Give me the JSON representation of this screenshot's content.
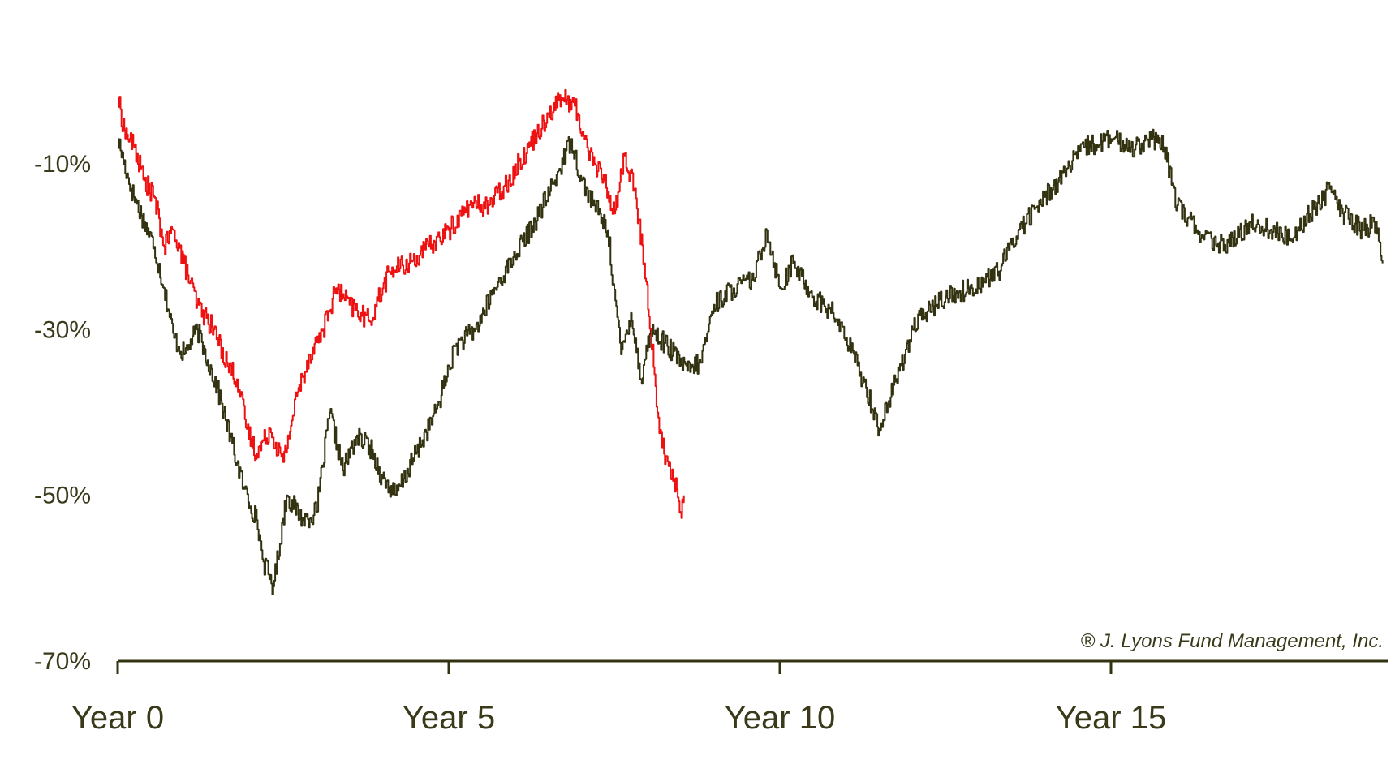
{
  "chart_data": {
    "type": "line",
    "title": "",
    "xlabel": "",
    "ylabel": "",
    "xlim": [
      0,
      19.1
    ],
    "ylim": [
      -70,
      0
    ],
    "grid": false,
    "legend": "none",
    "y_ticks": [
      {
        "value": -10,
        "label": "-10%"
      },
      {
        "value": -30,
        "label": "-30%"
      },
      {
        "value": -50,
        "label": "-50%"
      },
      {
        "value": -70,
        "label": "-70%"
      }
    ],
    "x_ticks": [
      {
        "value": 0,
        "label": "Year 0"
      },
      {
        "value": 5,
        "label": "Year 5"
      },
      {
        "value": 10,
        "label": "Year 10"
      },
      {
        "value": 15,
        "label": "Year 15"
      }
    ],
    "annotation": "® J. Lyons Fund Management, Inc.",
    "series": [
      {
        "color": "#333311",
        "x": [
          0,
          0.2,
          0.4,
          0.55,
          0.7,
          0.85,
          1.0,
          1.2,
          1.5,
          1.7,
          1.9,
          2.1,
          2.2,
          2.35,
          2.55,
          2.8,
          3.0,
          3.2,
          3.4,
          3.6,
          3.8,
          4.0,
          4.2,
          4.5,
          4.8,
          5.1,
          5.4,
          5.7,
          6.0,
          6.3,
          6.6,
          6.85,
          7.0,
          7.2,
          7.4,
          7.6,
          7.75,
          7.9,
          8.05,
          8.3,
          8.6,
          8.8,
          9.0,
          9.3,
          9.6,
          9.8,
          10.0,
          10.2,
          10.5,
          10.8,
          11.0,
          11.3,
          11.5,
          11.8,
          12.0,
          12.2,
          12.5,
          12.9,
          13.3,
          13.6,
          14.0,
          14.3,
          14.6,
          15.0,
          15.3,
          15.6,
          15.8,
          16.0,
          16.3,
          16.6,
          16.9,
          17.1,
          17.4,
          17.7,
          18.0,
          18.3,
          18.5,
          18.8,
          19.0,
          19.1
        ],
        "y": [
          -7,
          -13,
          -17,
          -20,
          -25,
          -31,
          -33,
          -30,
          -37,
          -43,
          -49,
          -53,
          -58,
          -61,
          -50,
          -53,
          -52,
          -40,
          -47,
          -43,
          -44,
          -48,
          -50,
          -45,
          -40,
          -32,
          -30,
          -25,
          -21,
          -17,
          -12,
          -7,
          -12,
          -15,
          -18,
          -33,
          -28,
          -36,
          -30,
          -32,
          -35,
          -34,
          -27,
          -25,
          -24,
          -18,
          -25,
          -22,
          -26,
          -28,
          -31,
          -37,
          -42,
          -35,
          -30,
          -28,
          -26,
          -25,
          -23,
          -18,
          -14,
          -11,
          -8,
          -7,
          -8,
          -7,
          -8,
          -15,
          -18,
          -20,
          -19,
          -17,
          -18,
          -19,
          -16,
          -13,
          -16,
          -18,
          -17,
          -22
        ]
      },
      {
        "color": "#ee1111",
        "x": [
          0,
          0.1,
          0.25,
          0.4,
          0.55,
          0.7,
          0.85,
          1.0,
          1.2,
          1.45,
          1.65,
          1.8,
          1.95,
          2.1,
          2.3,
          2.5,
          2.7,
          2.9,
          3.1,
          3.3,
          3.5,
          3.8,
          4.1,
          4.4,
          4.7,
          5.0,
          5.3,
          5.6,
          5.9,
          6.2,
          6.5,
          6.7,
          6.9,
          7.05,
          7.2,
          7.35,
          7.5,
          7.65,
          7.8,
          7.95,
          8.05,
          8.15,
          8.25,
          8.4,
          8.5,
          8.55
        ],
        "y": [
          -2,
          -6,
          -8,
          -12,
          -14,
          -20,
          -18,
          -22,
          -27,
          -30,
          -34,
          -36,
          -42,
          -45,
          -42,
          -46,
          -38,
          -33,
          -30,
          -25,
          -27,
          -29,
          -23,
          -22,
          -20,
          -18,
          -15,
          -15,
          -12,
          -8,
          -4,
          -2,
          -3,
          -7,
          -10,
          -12,
          -16,
          -9,
          -13,
          -22,
          -30,
          -40,
          -45,
          -48,
          -52,
          -50
        ]
      }
    ]
  }
}
